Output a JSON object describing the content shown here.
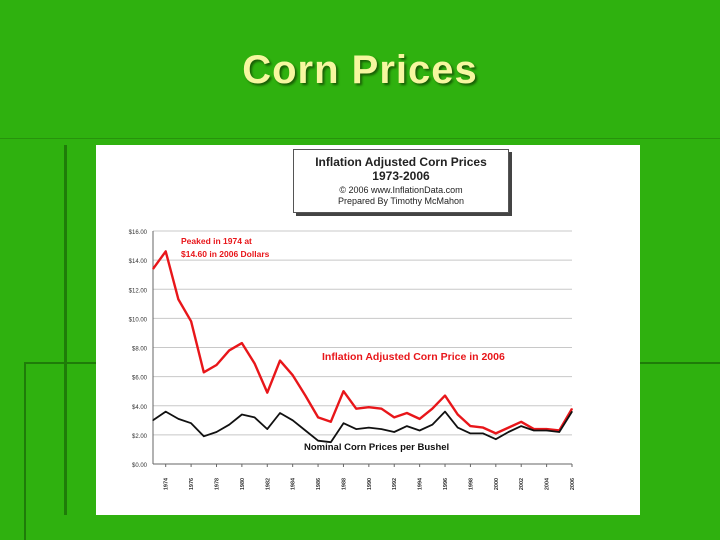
{
  "slide": {
    "title": "Corn Prices"
  },
  "chart_data": {
    "type": "line",
    "title": "Inflation Adjusted Corn Prices",
    "subtitle": "1973-2006",
    "copyright": "© 2006 www.InflationData.com",
    "credit": "Prepared By Timothy McMahon",
    "annotation_peak": "Peaked in 1974 at $14.60 in 2006 Dollars",
    "xlabel": "",
    "ylabel": "",
    "ylim": [
      0,
      16
    ],
    "y_ticks": [
      "$0.00",
      "$2.00",
      "$4.00",
      "$6.00",
      "$8.00",
      "$10.00",
      "$12.00",
      "$14.00",
      "$16.00"
    ],
    "y_tick_values": [
      0,
      2,
      4,
      6,
      8,
      10,
      12,
      14,
      16
    ],
    "x_ticks": [
      "1974",
      "1976",
      "1978",
      "1980",
      "1982",
      "1984",
      "1986",
      "1988",
      "1990",
      "1992",
      "1994",
      "1996",
      "1998",
      "2000",
      "2002",
      "2004",
      "2006"
    ],
    "grid": true,
    "x": [
      "1973",
      "1974",
      "1975",
      "1976",
      "1977",
      "1978",
      "1979",
      "1980",
      "1981",
      "1982",
      "1983",
      "1984",
      "1985",
      "1986",
      "1987",
      "1988",
      "1989",
      "1990",
      "1991",
      "1992",
      "1993",
      "1994",
      "1995",
      "1996",
      "1997",
      "1998",
      "1999",
      "2000",
      "2001",
      "2002",
      "2003",
      "2004",
      "2005",
      "2006"
    ],
    "series": [
      {
        "name": "Inflation Adjusted Corn Price in 2006",
        "color": "#e8161a",
        "values": [
          13.4,
          14.6,
          11.3,
          9.8,
          6.3,
          6.8,
          7.8,
          8.3,
          6.9,
          4.9,
          7.1,
          6.1,
          4.7,
          3.2,
          2.9,
          5.0,
          3.8,
          3.9,
          3.8,
          3.2,
          3.5,
          3.1,
          3.8,
          4.7,
          3.4,
          2.6,
          2.5,
          2.1,
          2.5,
          2.9,
          2.4,
          2.4,
          2.3,
          3.8
        ]
      },
      {
        "name": "Nominal Corn Prices per Bushel",
        "color": "#111111",
        "values": [
          3.0,
          3.6,
          3.1,
          2.8,
          1.9,
          2.2,
          2.7,
          3.4,
          3.2,
          2.4,
          3.5,
          3.0,
          2.3,
          1.6,
          1.5,
          2.8,
          2.4,
          2.5,
          2.4,
          2.2,
          2.6,
          2.3,
          2.7,
          3.6,
          2.5,
          2.1,
          2.1,
          1.7,
          2.2,
          2.6,
          2.3,
          2.3,
          2.2,
          3.6
        ]
      }
    ]
  }
}
